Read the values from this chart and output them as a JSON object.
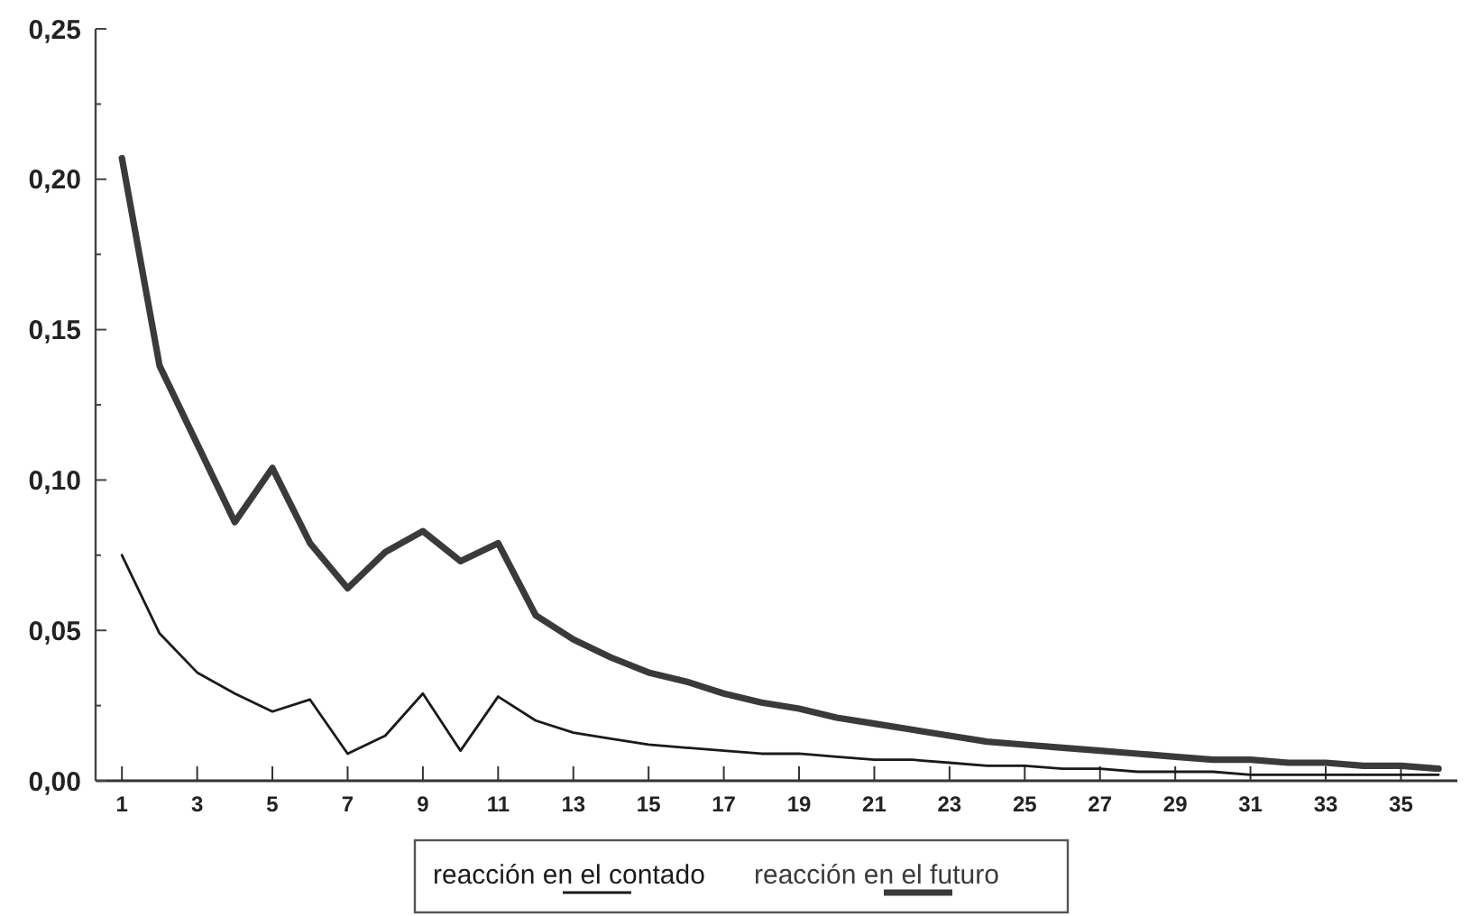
{
  "chart_data": {
    "type": "line",
    "x": [
      1,
      2,
      3,
      4,
      5,
      6,
      7,
      8,
      9,
      10,
      11,
      12,
      13,
      14,
      15,
      16,
      17,
      18,
      19,
      20,
      21,
      22,
      23,
      24,
      25,
      26,
      27,
      28,
      29,
      30,
      31,
      32,
      33,
      34,
      35,
      36
    ],
    "series": [
      {
        "name": "reacción en el contado",
        "color": "#1a1a1a",
        "values": [
          0.075,
          0.049,
          0.036,
          0.029,
          0.023,
          0.027,
          0.009,
          0.015,
          0.029,
          0.01,
          0.028,
          0.02,
          0.016,
          0.014,
          0.012,
          0.011,
          0.01,
          0.009,
          0.009,
          0.008,
          0.007,
          0.007,
          0.006,
          0.005,
          0.005,
          0.004,
          0.004,
          0.003,
          0.003,
          0.003,
          0.002,
          0.002,
          0.002,
          0.002,
          0.002,
          0.002
        ]
      },
      {
        "name": "reacción en el futuro",
        "color": "#3a3a3a",
        "values": [
          0.207,
          0.138,
          0.112,
          0.086,
          0.104,
          0.079,
          0.064,
          0.076,
          0.083,
          0.073,
          0.079,
          0.055,
          0.047,
          0.041,
          0.036,
          0.033,
          0.029,
          0.026,
          0.024,
          0.021,
          0.019,
          0.017,
          0.015,
          0.013,
          0.012,
          0.011,
          0.01,
          0.009,
          0.008,
          0.007,
          0.007,
          0.006,
          0.006,
          0.005,
          0.005,
          0.004
        ]
      }
    ],
    "xlim": [
      0.3,
      36.5
    ],
    "xticks": [
      1,
      3,
      5,
      7,
      9,
      11,
      13,
      15,
      17,
      19,
      21,
      23,
      25,
      27,
      29,
      31,
      33,
      35
    ],
    "ylim": [
      0,
      0.25
    ],
    "yticks": [
      {
        "value": 0,
        "label": "0,00"
      },
      {
        "value": 0.025,
        "label": null
      },
      {
        "value": 0.05,
        "label": "0,05"
      },
      {
        "value": 0.075,
        "label": null
      },
      {
        "value": 0.1,
        "label": "0,10"
      },
      {
        "value": 0.125,
        "label": null
      },
      {
        "value": 0.15,
        "label": "0,15"
      },
      {
        "value": 0.175,
        "label": null
      },
      {
        "value": 0.2,
        "label": "0,20"
      },
      {
        "value": 0.225,
        "label": null
      },
      {
        "value": 0.25,
        "label": "0,25"
      }
    ],
    "legend": "bottom",
    "grid": false,
    "marker": "none",
    "line_style": "solid"
  }
}
